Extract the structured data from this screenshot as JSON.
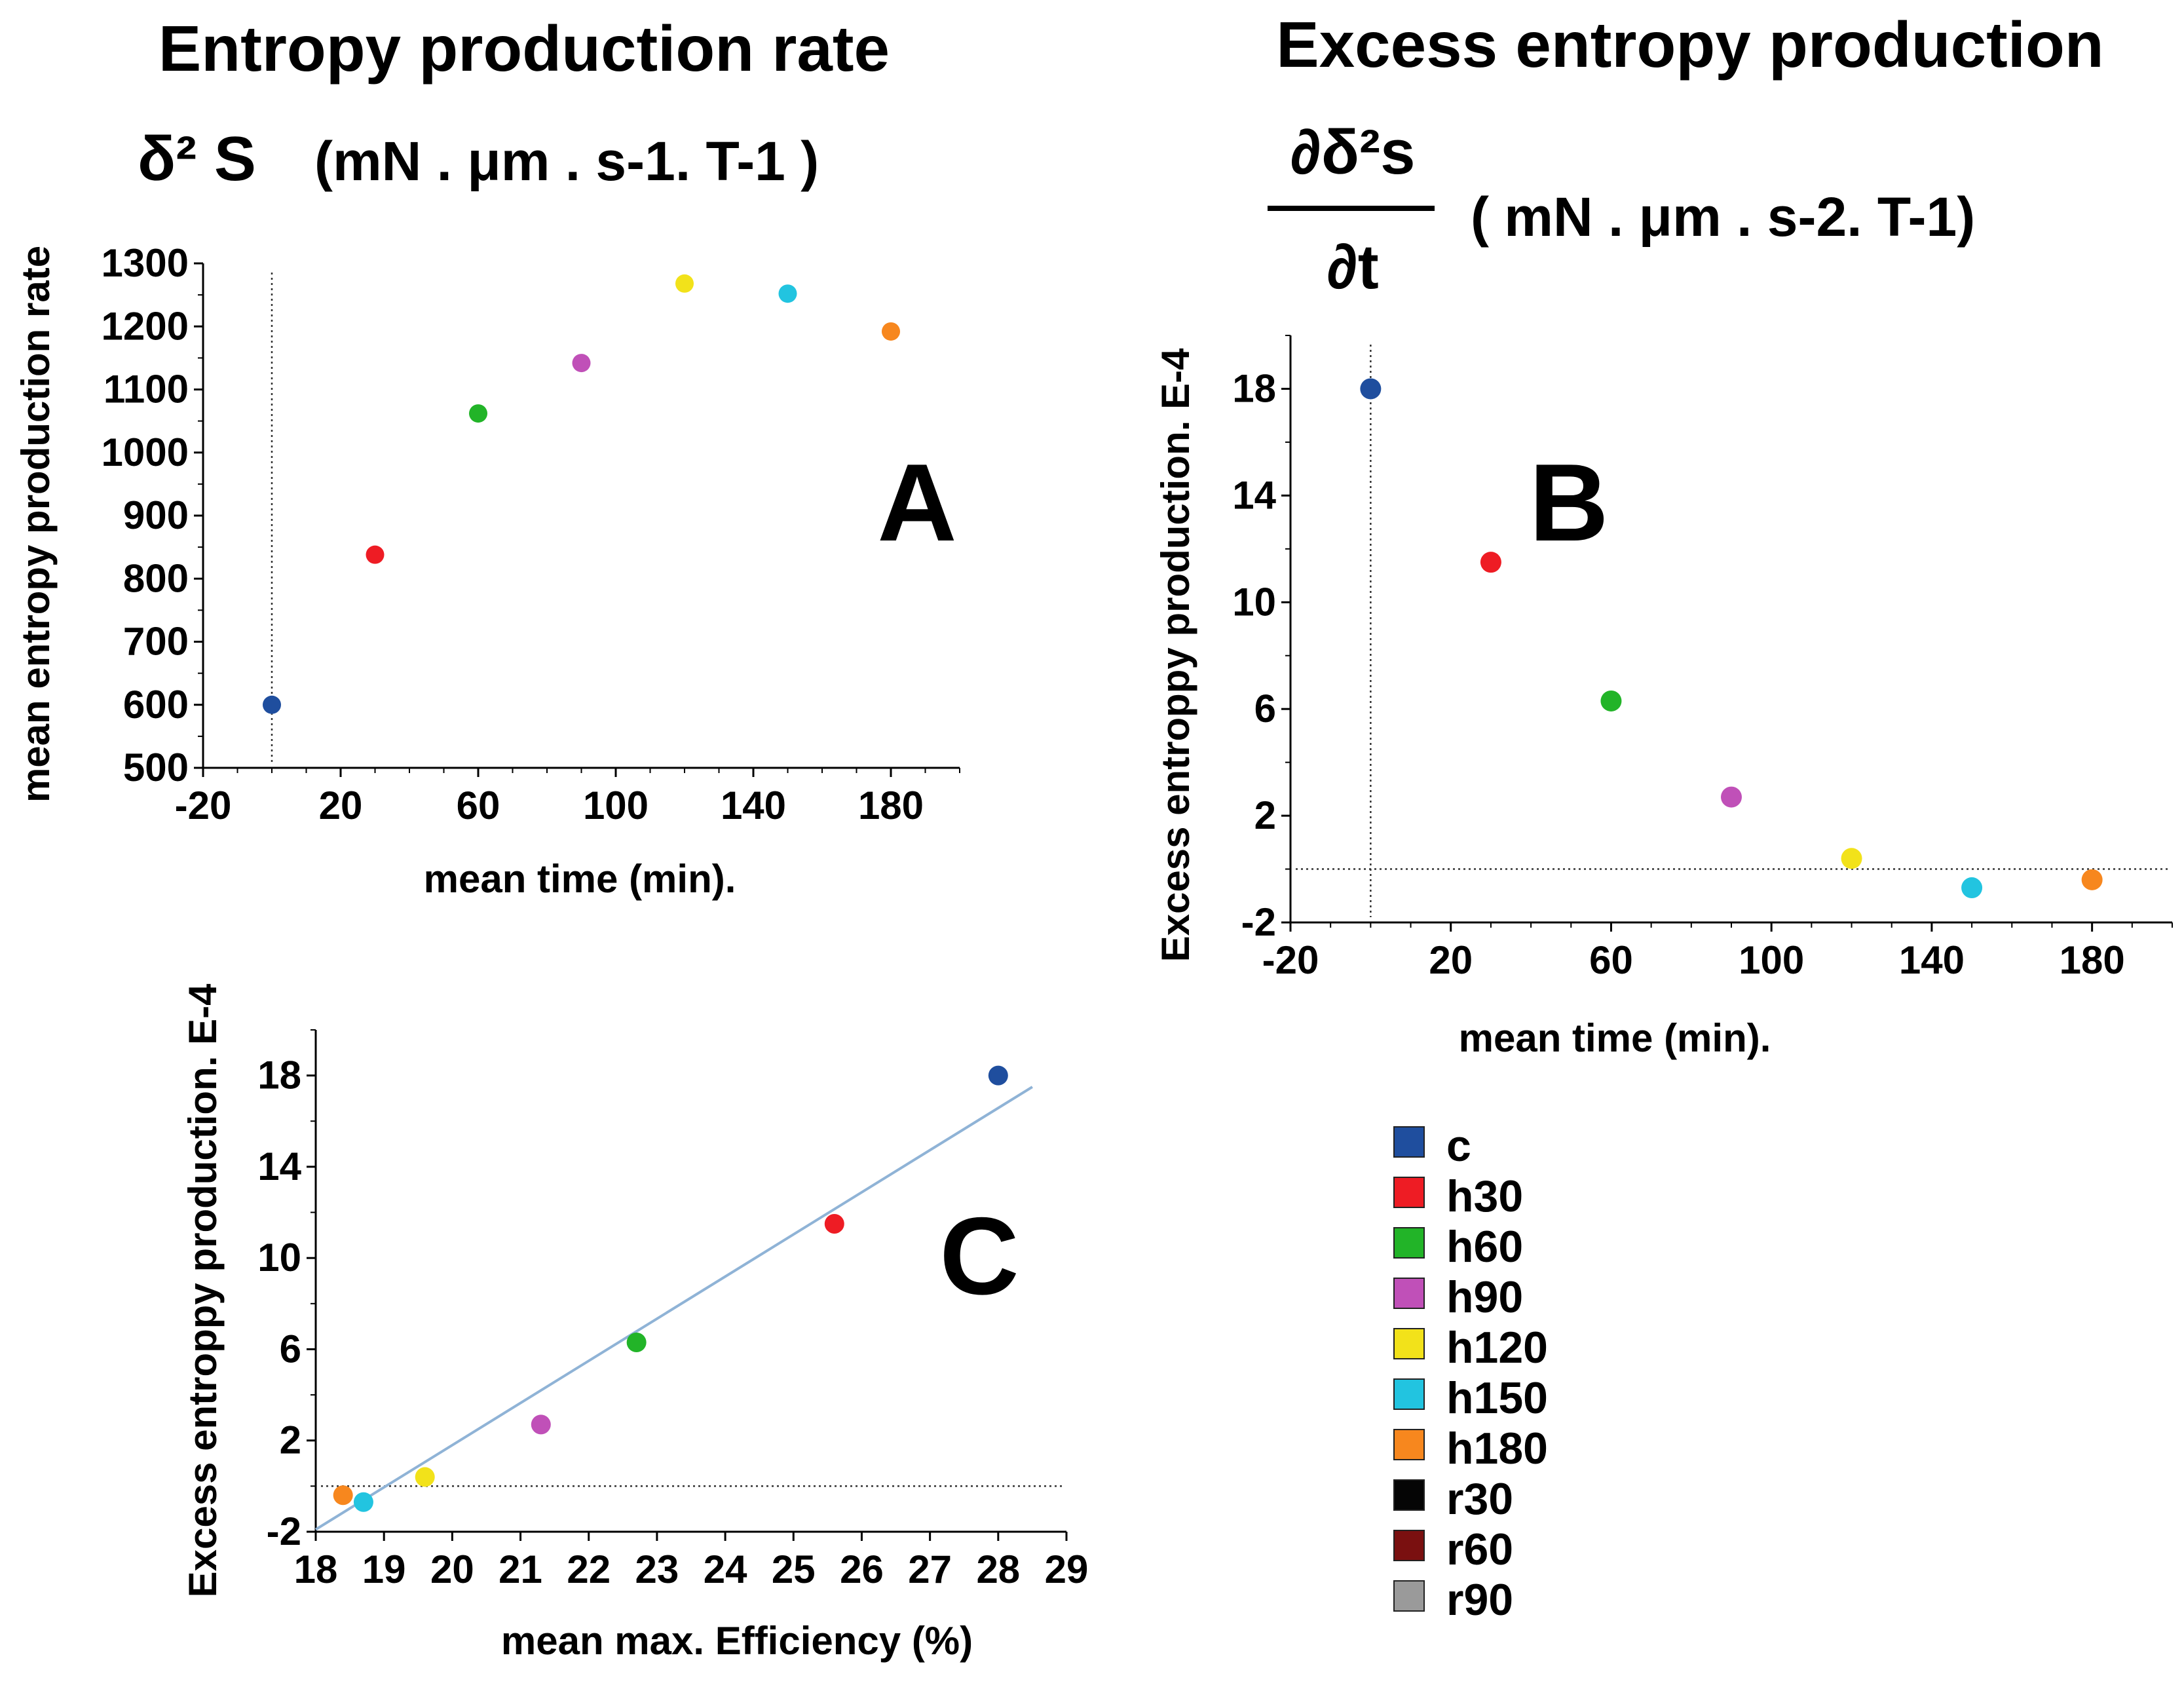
{
  "figure": {
    "header_a": "Entropy production rate",
    "header_b": "Excess entropy production",
    "symbol_a": "δ² S",
    "units_a": "(mN . μm . s-1. T-1 )",
    "symbol_b_num": "∂δ²s",
    "symbol_b_den": "∂t",
    "units_b": "( mN .  μm . s-2. T-1)"
  },
  "chart_data": [
    {
      "type": "scatter",
      "panel": "A",
      "xlabel": "mean time  (min).",
      "ylabel": "mean entropy production rate",
      "xlim": [
        -20,
        200
      ],
      "ylim": [
        500,
        1300
      ],
      "xticks": [
        -20,
        20,
        60,
        100,
        140,
        180
      ],
      "yticks": [
        500,
        600,
        700,
        800,
        900,
        1000,
        1100,
        1200,
        1300
      ],
      "reference_vline_x": 0,
      "points": [
        {
          "series": "c",
          "x": 0,
          "y": 600
        },
        {
          "series": "h30",
          "x": 30,
          "y": 838
        },
        {
          "series": "h60",
          "x": 60,
          "y": 1062
        },
        {
          "series": "h90",
          "x": 90,
          "y": 1142
        },
        {
          "series": "h120",
          "x": 120,
          "y": 1268
        },
        {
          "series": "h150",
          "x": 150,
          "y": 1252
        },
        {
          "series": "h180",
          "x": 180,
          "y": 1192
        }
      ]
    },
    {
      "type": "scatter",
      "panel": "B",
      "xlabel": "mean time  (min).",
      "ylabel": "Excess entroppy production. E-4",
      "xlim": [
        -20,
        200
      ],
      "ylim": [
        -2,
        20
      ],
      "xticks": [
        -20,
        20,
        60,
        100,
        140,
        180
      ],
      "yticks": [
        -2,
        2,
        6,
        10,
        14,
        18
      ],
      "reference_vline_x": 0,
      "reference_hline_y": 0,
      "points": [
        {
          "series": "c",
          "x": 0,
          "y": 18
        },
        {
          "series": "h30",
          "x": 30,
          "y": 11.5
        },
        {
          "series": "h60",
          "x": 60,
          "y": 6.3
        },
        {
          "series": "h90",
          "x": 90,
          "y": 2.7
        },
        {
          "series": "h120",
          "x": 120,
          "y": 0.4
        },
        {
          "series": "h150",
          "x": 150,
          "y": -0.7
        },
        {
          "series": "h180",
          "x": 180,
          "y": -0.4
        }
      ]
    },
    {
      "type": "scatter",
      "panel": "C",
      "xlabel": "mean max. Efficiency (%)",
      "ylabel": "Excess entroppy production. E-4",
      "xlim": [
        18,
        29
      ],
      "ylim": [
        -2,
        20
      ],
      "xticks": [
        18,
        19,
        20,
        21,
        22,
        23,
        24,
        25,
        26,
        27,
        28,
        29
      ],
      "yticks": [
        -2,
        2,
        6,
        10,
        14,
        18
      ],
      "reference_hline_y": 0,
      "fit_line": {
        "x": [
          18,
          28.5
        ],
        "y": [
          -1.9,
          17.5
        ],
        "color": "#8fb3d6"
      },
      "points": [
        {
          "series": "c",
          "x": 28.0,
          "y": 18
        },
        {
          "series": "h30",
          "x": 25.6,
          "y": 11.5
        },
        {
          "series": "h60",
          "x": 22.7,
          "y": 6.3
        },
        {
          "series": "h90",
          "x": 21.3,
          "y": 2.7
        },
        {
          "series": "h120",
          "x": 19.6,
          "y": 0.4
        },
        {
          "series": "h150",
          "x": 18.7,
          "y": -0.7
        },
        {
          "series": "h180",
          "x": 18.4,
          "y": -0.4
        }
      ]
    }
  ],
  "legend": [
    {
      "label": "c",
      "color": "#1f4e9e"
    },
    {
      "label": "h30",
      "color": "#ee1c24"
    },
    {
      "label": "h60",
      "color": "#22b428"
    },
    {
      "label": "h90",
      "color": "#c050b8"
    },
    {
      "label": "h120",
      "color": "#f2e21a"
    },
    {
      "label": "h150",
      "color": "#22c4e0"
    },
    {
      "label": "h180",
      "color": "#f7871e"
    },
    {
      "label": "r30",
      "color": "#050505"
    },
    {
      "label": "r60",
      "color": "#7a1010"
    },
    {
      "label": "r90",
      "color": "#9a9a9a"
    }
  ]
}
